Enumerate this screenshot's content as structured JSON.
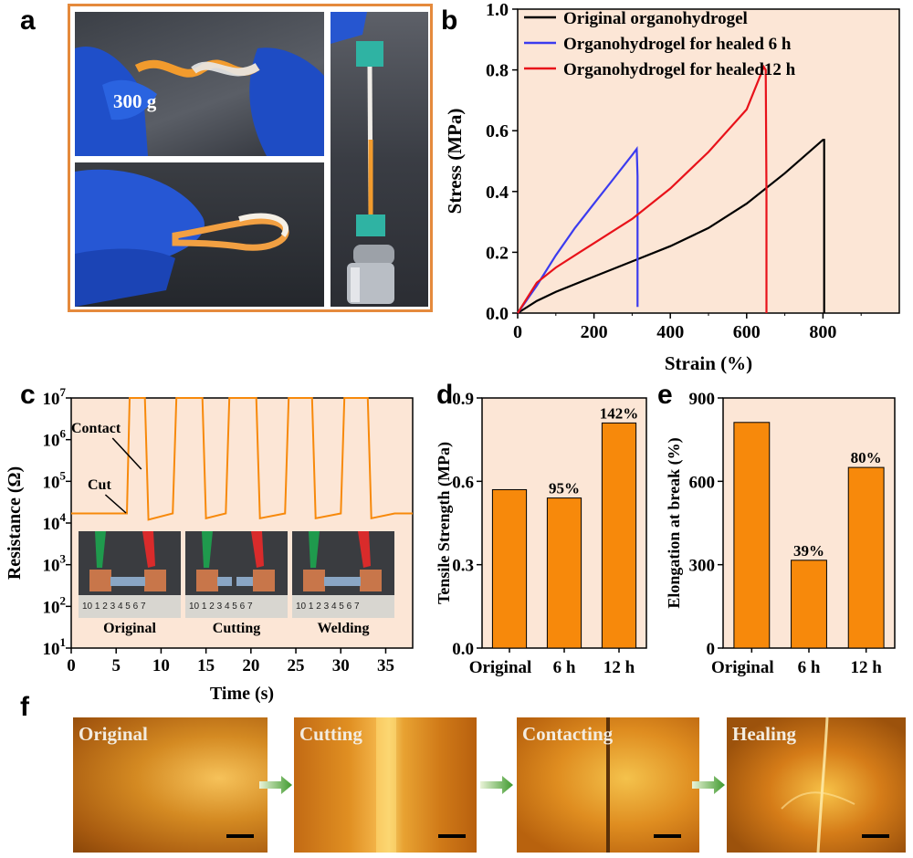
{
  "panels": {
    "a": "a",
    "b": "b",
    "c": "c",
    "d": "d",
    "e": "e",
    "f": "f"
  },
  "panel_a": {
    "label_weight": "300 g"
  },
  "panel_c": {
    "annotations": {
      "contact": "Contact",
      "cut": "Cut"
    },
    "photo_labels": [
      "Original",
      "Cutting",
      "Welding"
    ],
    "ruler_digits": [
      "10",
      "1",
      "2",
      "3",
      "4",
      "5",
      "6",
      "7"
    ]
  },
  "panel_f": {
    "labels": [
      "Original",
      "Cutting",
      "Contacting",
      "Healing"
    ]
  },
  "colors": {
    "orange": "#f7890b",
    "panel_bg": "#fce6d6",
    "black": "#000000",
    "blue": "#3b3bef",
    "red": "#e8121a",
    "frame": "#e58a3c"
  },
  "chart_data": [
    {
      "id": "b",
      "type": "line",
      "xlabel": "Strain (%)",
      "ylabel": "Stress (MPa)",
      "xlim": [
        0,
        1000
      ],
      "ylim": [
        0,
        1.0
      ],
      "xticks": [
        "0",
        "200",
        "400",
        "600",
        "800"
      ],
      "yticks": [
        "0.0",
        "0.2",
        "0.4",
        "0.6",
        "0.8",
        "1.0"
      ],
      "legend_position": "top-right",
      "series": [
        {
          "name": "Original organohydrogel",
          "color": "#000000",
          "x": [
            0,
            50,
            100,
            200,
            300,
            400,
            500,
            600,
            700,
            800,
            803,
            803
          ],
          "y": [
            0,
            0.04,
            0.07,
            0.12,
            0.17,
            0.22,
            0.28,
            0.36,
            0.46,
            0.57,
            0.57,
            0
          ]
        },
        {
          "name": "Organohydrogel for healed 6 h",
          "color": "#3b3bef",
          "x": [
            0,
            50,
            100,
            150,
            200,
            250,
            300,
            312,
            314,
            314
          ],
          "y": [
            0,
            0.09,
            0.19,
            0.28,
            0.36,
            0.44,
            0.52,
            0.54,
            0.45,
            0.02
          ]
        },
        {
          "name": "Organohydrogel for healed12 h",
          "color": "#e8121a",
          "x": [
            0,
            50,
            100,
            200,
            300,
            400,
            500,
            600,
            645,
            650,
            652,
            652
          ],
          "y": [
            0,
            0.1,
            0.15,
            0.23,
            0.31,
            0.41,
            0.53,
            0.67,
            0.81,
            0.8,
            0.4,
            0
          ]
        }
      ]
    },
    {
      "id": "c",
      "type": "line",
      "xlabel": "Time (s)",
      "ylabel": "Resistance (Ω)",
      "xlim": [
        0,
        38
      ],
      "ylim": [
        10,
        10000000
      ],
      "scale_y": "log",
      "xticks": [
        "0",
        "5",
        "10",
        "15",
        "20",
        "25",
        "30",
        "35"
      ],
      "yticks": [
        "10^1",
        "10^2",
        "10^3",
        "10^4",
        "10^5",
        "10^6",
        "10^7"
      ],
      "series": [
        {
          "name": "",
          "color": "#f7890b",
          "x": [
            0,
            6.2,
            6.5,
            8.2,
            8.6,
            11.3,
            11.7,
            14.6,
            15.0,
            17.2,
            17.6,
            20.6,
            21.0,
            23.8,
            24.2,
            26.8,
            27.2,
            30.0,
            30.4,
            33.0,
            33.4,
            36.0,
            36.4,
            38
          ],
          "y": [
            17000,
            17000,
            10000000,
            10000000,
            12000,
            17000,
            10000000,
            10000000,
            13000,
            17000,
            10000000,
            10000000,
            13000,
            17000,
            10000000,
            10000000,
            13000,
            17000,
            10000000,
            10000000,
            13000,
            17000,
            17000,
            17000
          ]
        }
      ]
    },
    {
      "id": "d",
      "type": "bar",
      "ylabel": "Tensile Strength (MPa)",
      "categories": [
        "Original",
        "6 h",
        "12 h"
      ],
      "values": [
        0.57,
        0.54,
        0.81
      ],
      "data_labels": [
        "",
        "95%",
        "142%"
      ],
      "ylim": [
        0,
        0.9
      ],
      "yticks": [
        "0.0",
        "0.3",
        "0.6",
        "0.9"
      ],
      "color": "#f7890b"
    },
    {
      "id": "e",
      "type": "bar",
      "ylabel": "Elongation at break (%)",
      "categories": [
        "Original",
        "6 h",
        "12 h"
      ],
      "values": [
        812,
        316,
        650
      ],
      "data_labels": [
        "",
        "39%",
        "80%"
      ],
      "ylim": [
        0,
        900
      ],
      "yticks": [
        "0",
        "300",
        "600",
        "900"
      ],
      "color": "#f7890b"
    }
  ]
}
